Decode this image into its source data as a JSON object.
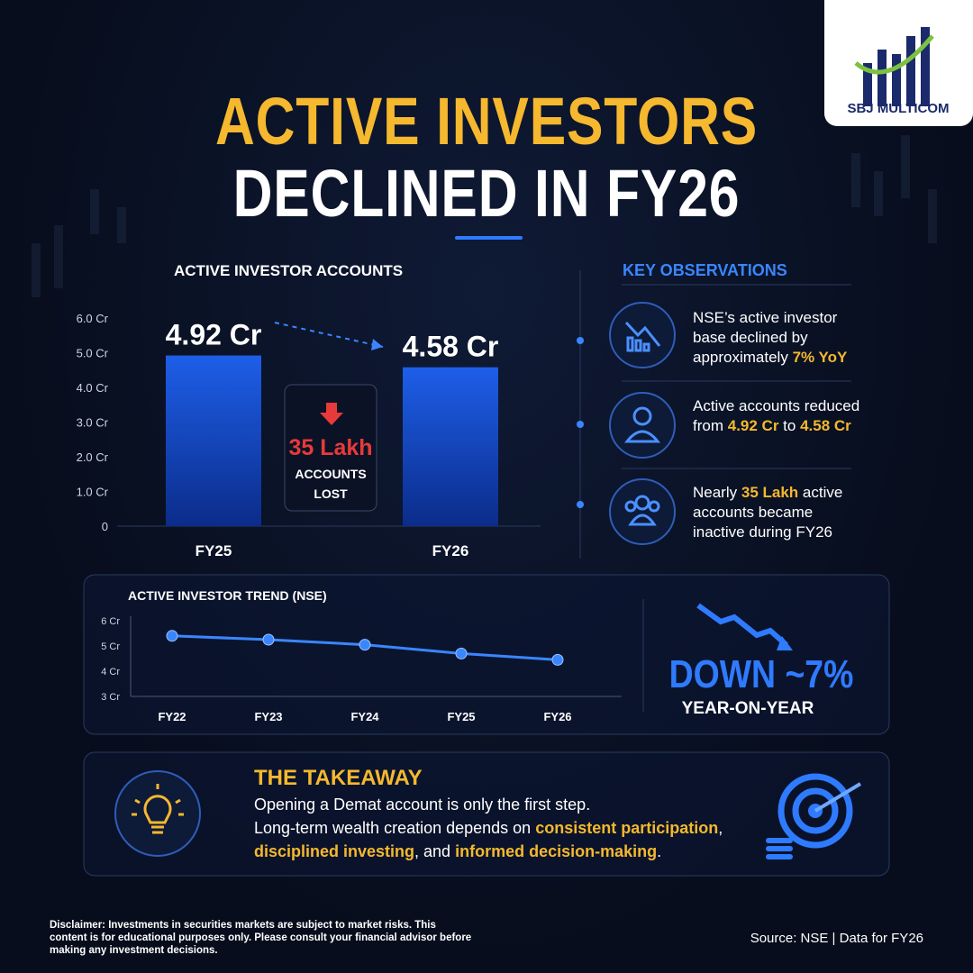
{
  "brand": "SBJ MULTICOM",
  "title_line1": "ACTIVE INVESTORS",
  "title_line2": "DECLINED IN FY26",
  "chart_data": [
    {
      "type": "bar",
      "title": "ACTIVE INVESTOR ACCOUNTS",
      "categories": [
        "FY25",
        "FY26"
      ],
      "values": [
        4.92,
        4.58
      ],
      "value_labels": [
        "4.92 Cr",
        "4.58 Cr"
      ],
      "color": "#1e5ee8",
      "ylim": [
        0,
        6
      ],
      "yticks": [
        0,
        {
          "value": 1,
          "label": "1.0 Cr"
        },
        {
          "value": 2,
          "label": "2.0 Cr"
        },
        {
          "value": 3,
          "label": "3.0 Cr"
        },
        {
          "value": 4,
          "label": "4.0 Cr"
        },
        {
          "value": 5,
          "label": "5.0 Cr"
        },
        {
          "value": 6,
          "label": "6.0 Cr"
        }
      ],
      "callout": {
        "headline": "35 Lakh",
        "line1": "ACCOUNTS",
        "line2": "LOST"
      }
    },
    {
      "type": "line",
      "title": "ACTIVE INVESTOR TREND (NSE)",
      "categories": [
        "FY22",
        "FY23",
        "FY24",
        "FY25",
        "FY26"
      ],
      "values": [
        5.4,
        5.25,
        5.05,
        4.7,
        4.45
      ],
      "color": "#3a86ff",
      "ylim": [
        3,
        6
      ],
      "yticks": [
        {
          "value": 3,
          "label": "3 Cr"
        },
        {
          "value": 4,
          "label": "4 Cr"
        },
        {
          "value": 5,
          "label": "5 Cr"
        },
        {
          "value": 6,
          "label": "6 Cr"
        }
      ]
    }
  ],
  "observations": {
    "title": "KEY OBSERVATIONS",
    "items": [
      [
        {
          "text": "NSE’s active investor base declined by approximately ",
          "color": "#ffffff"
        },
        {
          "text": "7% YoY",
          "color": "#f5b82e"
        }
      ],
      [
        {
          "text": "Active accounts reduced from ",
          "color": "#ffffff"
        },
        {
          "text": "4.92 Cr",
          "color": "#f5b82e"
        },
        {
          "text": " to ",
          "color": "#ffffff"
        },
        {
          "text": "4.58 Cr",
          "color": "#f5b82e"
        }
      ],
      [
        {
          "text": "Nearly ",
          "color": "#ffffff"
        },
        {
          "text": "35 Lakh",
          "color": "#f5b82e"
        },
        {
          "text": " active accounts became inactive during FY26",
          "color": "#ffffff"
        }
      ]
    ]
  },
  "down_stat": {
    "headline": "DOWN ~7%",
    "subtitle": "YEAR-ON-YEAR"
  },
  "takeaway": {
    "title": "THE TAKEAWAY",
    "lines": [
      [
        {
          "text": "Opening a Demat account is only the first step.",
          "color": "#ffffff"
        }
      ],
      [
        {
          "text": "Long-term wealth creation depends on ",
          "color": "#ffffff"
        },
        {
          "text": "consistent participation",
          "color": "#f5b82e"
        },
        {
          "text": ",",
          "color": "#ffffff"
        }
      ],
      [
        {
          "text": "disciplined investing",
          "color": "#f5b82e"
        },
        {
          "text": ", and ",
          "color": "#ffffff"
        },
        {
          "text": "informed decision-making",
          "color": "#f5b82e"
        },
        {
          "text": ".",
          "color": "#ffffff"
        }
      ]
    ]
  },
  "disclaimer": "Disclaimer: Investments in securities markets are subject to market risks. This content is for educational purposes only. Please consult your financial advisor before making any investment decisions.",
  "source": "Source: NSE | Data for FY26"
}
